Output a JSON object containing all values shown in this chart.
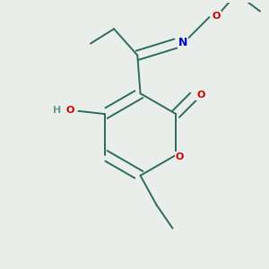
{
  "background_color": "#eaeeea",
  "bond_color": "#2d6b5a",
  "atom_colors": {
    "O": "#cc0000",
    "N": "#0000cc",
    "H": "#6a9a8a"
  },
  "line_width": 1.4,
  "figsize": [
    3.0,
    3.0
  ],
  "dpi": 100
}
